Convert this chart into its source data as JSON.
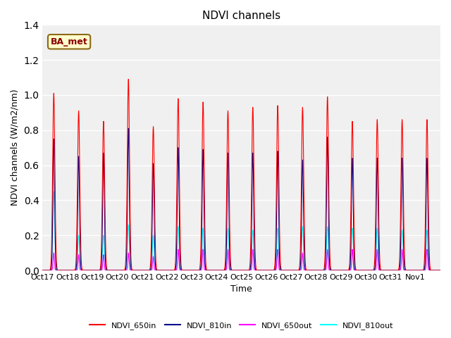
{
  "title": "NDVI channels",
  "xlabel": "Time",
  "ylabel": "NDVI channels (W/m2/nm)",
  "annotation": "BA_met",
  "ylim": [
    0.0,
    1.4
  ],
  "colors": {
    "NDVI_650in": "#FF0000",
    "NDVI_810in": "#00008B",
    "NDVI_650out": "#FF00FF",
    "NDVI_810out": "#00FFFF"
  },
  "legend_labels": [
    "NDVI_650in",
    "NDVI_810in",
    "NDVI_650out",
    "NDVI_810out"
  ],
  "tick_labels": [
    "Oct 17",
    "Oct 18",
    "Oct 19",
    "Oct 20",
    "Oct 21",
    "Oct 22",
    "Oct 23",
    "Oct 24",
    "Oct 25",
    "Oct 26",
    "Oct 27",
    "Oct 28",
    "Oct 29",
    "Oct 30",
    "Oct 31",
    "Nov 1"
  ],
  "peak_650in": [
    1.01,
    0.91,
    0.85,
    1.09,
    0.82,
    0.98,
    0.96,
    0.91,
    0.93,
    0.94,
    0.93,
    0.99,
    0.85,
    0.86,
    0.86,
    0.86
  ],
  "peak_810in": [
    0.75,
    0.65,
    0.67,
    0.81,
    0.61,
    0.7,
    0.69,
    0.67,
    0.67,
    0.68,
    0.63,
    0.76,
    0.64,
    0.64,
    0.64,
    0.64
  ],
  "peak_650out": [
    0.1,
    0.09,
    0.09,
    0.1,
    0.08,
    0.12,
    0.12,
    0.12,
    0.12,
    0.12,
    0.1,
    0.12,
    0.12,
    0.12,
    0.12,
    0.12
  ],
  "peak_810out": [
    0.45,
    0.2,
    0.2,
    0.26,
    0.2,
    0.25,
    0.24,
    0.24,
    0.23,
    0.24,
    0.25,
    0.25,
    0.24,
    0.24,
    0.23,
    0.23
  ],
  "bg_color": "#f0f0f0",
  "plot_bg_color": "#f0f0f0",
  "grid_color": "white",
  "figsize": [
    6.4,
    4.8
  ],
  "dpi": 100
}
